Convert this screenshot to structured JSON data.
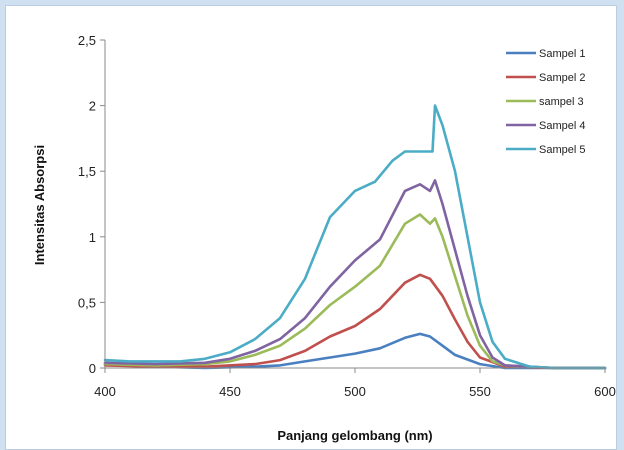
{
  "chart_data": {
    "type": "line",
    "title": "",
    "xlabel": "Panjang gelombang (nm)",
    "ylabel": "Intensitas Absorpsi",
    "xlim": [
      400,
      600
    ],
    "ylim": [
      0,
      2.5
    ],
    "x_ticks": [
      "400",
      "450",
      "500",
      "550",
      "600"
    ],
    "y_ticks": [
      "0",
      "0,5",
      "1",
      "1,5",
      "2",
      "2,5"
    ],
    "grid": false,
    "legend_position": "right",
    "series": [
      {
        "name": "Sampel 1",
        "color": "#4a7fc0",
        "points": [
          [
            400,
            0.03
          ],
          [
            420,
            0.01
          ],
          [
            440,
            0.0
          ],
          [
            460,
            0.01
          ],
          [
            470,
            0.02
          ],
          [
            480,
            0.05
          ],
          [
            490,
            0.08
          ],
          [
            500,
            0.11
          ],
          [
            510,
            0.15
          ],
          [
            520,
            0.23
          ],
          [
            526,
            0.26
          ],
          [
            530,
            0.24
          ],
          [
            535,
            0.17
          ],
          [
            540,
            0.1
          ],
          [
            550,
            0.03
          ],
          [
            560,
            0.0
          ],
          [
            580,
            0.0
          ],
          [
            600,
            0.0
          ]
        ]
      },
      {
        "name": "Sampel 2",
        "color": "#c0504d",
        "points": [
          [
            400,
            0.02
          ],
          [
            420,
            0.01
          ],
          [
            440,
            0.01
          ],
          [
            460,
            0.03
          ],
          [
            470,
            0.06
          ],
          [
            480,
            0.13
          ],
          [
            490,
            0.24
          ],
          [
            500,
            0.32
          ],
          [
            510,
            0.45
          ],
          [
            520,
            0.65
          ],
          [
            526,
            0.71
          ],
          [
            530,
            0.68
          ],
          [
            535,
            0.55
          ],
          [
            540,
            0.37
          ],
          [
            545,
            0.2
          ],
          [
            550,
            0.08
          ],
          [
            560,
            0.01
          ],
          [
            580,
            0.0
          ],
          [
            600,
            0.0
          ]
        ]
      },
      {
        "name": "sampel 3",
        "color": "#9bbb59",
        "points": [
          [
            400,
            0.03
          ],
          [
            420,
            0.02
          ],
          [
            440,
            0.03
          ],
          [
            450,
            0.05
          ],
          [
            460,
            0.1
          ],
          [
            470,
            0.17
          ],
          [
            480,
            0.3
          ],
          [
            490,
            0.48
          ],
          [
            500,
            0.62
          ],
          [
            510,
            0.78
          ],
          [
            520,
            1.1
          ],
          [
            526,
            1.17
          ],
          [
            530,
            1.1
          ],
          [
            532,
            1.14
          ],
          [
            535,
            1.0
          ],
          [
            540,
            0.7
          ],
          [
            545,
            0.4
          ],
          [
            550,
            0.17
          ],
          [
            555,
            0.05
          ],
          [
            560,
            0.02
          ],
          [
            580,
            0.0
          ],
          [
            600,
            0.0
          ]
        ]
      },
      {
        "name": "Sampel 4",
        "color": "#8064a2",
        "points": [
          [
            400,
            0.04
          ],
          [
            420,
            0.03
          ],
          [
            440,
            0.04
          ],
          [
            450,
            0.07
          ],
          [
            460,
            0.13
          ],
          [
            470,
            0.22
          ],
          [
            480,
            0.38
          ],
          [
            490,
            0.62
          ],
          [
            500,
            0.82
          ],
          [
            510,
            0.98
          ],
          [
            520,
            1.35
          ],
          [
            526,
            1.4
          ],
          [
            530,
            1.35
          ],
          [
            532,
            1.43
          ],
          [
            535,
            1.25
          ],
          [
            540,
            0.9
          ],
          [
            545,
            0.55
          ],
          [
            550,
            0.25
          ],
          [
            555,
            0.08
          ],
          [
            560,
            0.02
          ],
          [
            580,
            0.0
          ],
          [
            600,
            0.0
          ]
        ]
      },
      {
        "name": "Sampel 5",
        "color": "#4bacc6",
        "points": [
          [
            400,
            0.06
          ],
          [
            410,
            0.05
          ],
          [
            420,
            0.05
          ],
          [
            430,
            0.05
          ],
          [
            440,
            0.07
          ],
          [
            450,
            0.12
          ],
          [
            460,
            0.22
          ],
          [
            470,
            0.38
          ],
          [
            480,
            0.68
          ],
          [
            490,
            1.15
          ],
          [
            500,
            1.35
          ],
          [
            508,
            1.42
          ],
          [
            515,
            1.58
          ],
          [
            520,
            1.65
          ],
          [
            528,
            1.65
          ],
          [
            531,
            1.65
          ],
          [
            532,
            2.0
          ],
          [
            535,
            1.85
          ],
          [
            540,
            1.5
          ],
          [
            545,
            1.0
          ],
          [
            550,
            0.5
          ],
          [
            555,
            0.2
          ],
          [
            560,
            0.07
          ],
          [
            570,
            0.01
          ],
          [
            580,
            0.0
          ],
          [
            600,
            0.0
          ]
        ]
      }
    ]
  }
}
